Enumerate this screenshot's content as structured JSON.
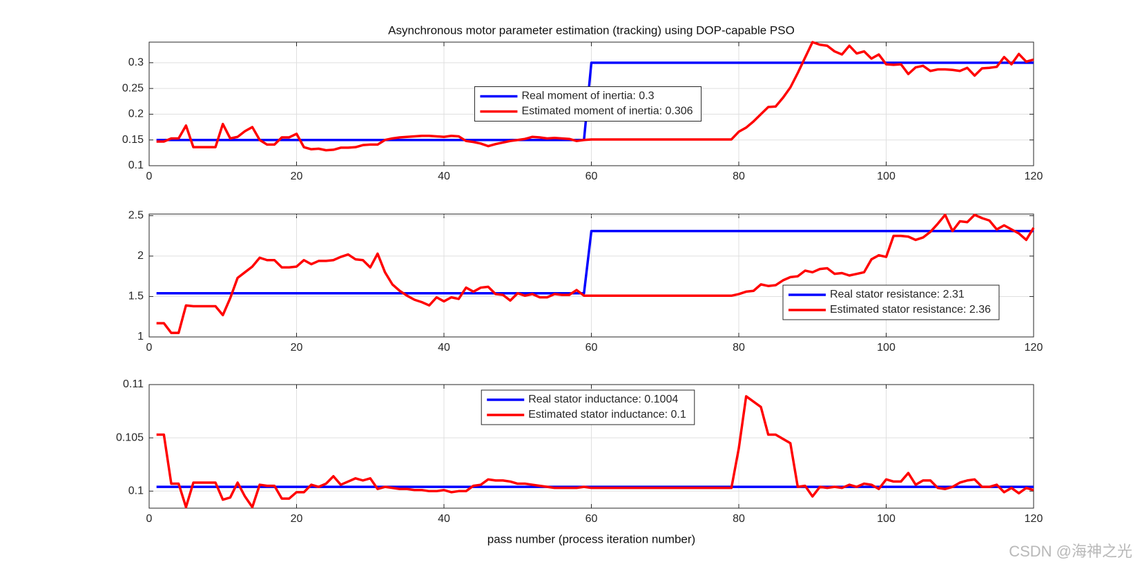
{
  "chart_data": [
    {
      "type": "line",
      "title": "Asynchronous motor parameter estimation (tracking) using DOP-capable PSO",
      "xlim": [
        0,
        120
      ],
      "xticks": [
        0,
        20,
        40,
        60,
        80,
        100,
        120
      ],
      "ylim": [
        0.1,
        0.34
      ],
      "yticks": [
        0.1,
        0.15,
        0.2,
        0.25,
        0.3
      ],
      "grid": true,
      "legend": "center",
      "x": [
        1,
        2,
        3,
        4,
        5,
        6,
        7,
        8,
        9,
        10,
        11,
        12,
        13,
        14,
        15,
        16,
        17,
        18,
        19,
        20,
        21,
        22,
        23,
        24,
        25,
        26,
        27,
        28,
        29,
        30,
        31,
        32,
        33,
        34,
        35,
        36,
        37,
        38,
        39,
        40,
        41,
        42,
        43,
        44,
        45,
        46,
        47,
        48,
        49,
        50,
        51,
        52,
        53,
        54,
        55,
        56,
        57,
        58,
        59,
        60,
        61,
        62,
        63,
        64,
        65,
        66,
        67,
        68,
        69,
        70,
        71,
        72,
        73,
        74,
        75,
        76,
        77,
        78,
        79,
        80,
        81,
        82,
        83,
        84,
        85,
        86,
        87,
        88,
        89,
        90,
        91,
        92,
        93,
        94,
        95,
        96,
        97,
        98,
        99,
        100,
        101,
        102,
        103,
        104,
        105,
        106,
        107,
        108,
        109,
        110,
        111,
        112,
        113,
        114,
        115,
        116,
        117,
        118,
        119,
        120
      ],
      "series": [
        {
          "name": "Real moment of inertia: 0.3",
          "color": "#0000ff",
          "x": [
            1,
            59,
            60,
            120
          ],
          "values": [
            0.15,
            0.15,
            0.3,
            0.3
          ]
        },
        {
          "name": "Estimated moment of inertia: 0.306",
          "color": "#ff0000",
          "values": [
            0.147,
            0.147,
            0.153,
            0.153,
            0.178,
            0.136,
            0.136,
            0.136,
            0.136,
            0.181,
            0.153,
            0.156,
            0.167,
            0.175,
            0.15,
            0.141,
            0.141,
            0.155,
            0.155,
            0.162,
            0.136,
            0.132,
            0.133,
            0.13,
            0.131,
            0.135,
            0.135,
            0.136,
            0.14,
            0.141,
            0.141,
            0.15,
            0.153,
            0.155,
            0.156,
            0.157,
            0.158,
            0.158,
            0.157,
            0.156,
            0.158,
            0.157,
            0.148,
            0.146,
            0.143,
            0.138,
            0.142,
            0.145,
            0.148,
            0.15,
            0.152,
            0.156,
            0.155,
            0.153,
            0.154,
            0.153,
            0.152,
            0.148,
            0.15,
            0.151,
            0.151,
            0.151,
            0.151,
            0.151,
            0.151,
            0.151,
            0.151,
            0.151,
            0.151,
            0.151,
            0.151,
            0.151,
            0.151,
            0.151,
            0.151,
            0.151,
            0.151,
            0.151,
            0.151,
            0.166,
            0.174,
            0.186,
            0.2,
            0.214,
            0.215,
            0.232,
            0.252,
            0.28,
            0.31,
            0.34,
            0.335,
            0.333,
            0.322,
            0.316,
            0.333,
            0.318,
            0.322,
            0.308,
            0.316,
            0.297,
            0.296,
            0.297,
            0.278,
            0.291,
            0.294,
            0.284,
            0.287,
            0.287,
            0.286,
            0.284,
            0.29,
            0.275,
            0.289,
            0.29,
            0.292,
            0.311,
            0.297,
            0.317,
            0.302,
            0.306
          ]
        }
      ]
    },
    {
      "type": "line",
      "xlim": [
        0,
        120
      ],
      "xticks": [
        0,
        20,
        40,
        60,
        80,
        100,
        120
      ],
      "ylim": [
        1,
        2.52
      ],
      "yticks": [
        1,
        1.5,
        2,
        2.5
      ],
      "grid": true,
      "legend": "southeast",
      "x": [
        1,
        2,
        3,
        4,
        5,
        6,
        7,
        8,
        9,
        10,
        11,
        12,
        13,
        14,
        15,
        16,
        17,
        18,
        19,
        20,
        21,
        22,
        23,
        24,
        25,
        26,
        27,
        28,
        29,
        30,
        31,
        32,
        33,
        34,
        35,
        36,
        37,
        38,
        39,
        40,
        41,
        42,
        43,
        44,
        45,
        46,
        47,
        48,
        49,
        50,
        51,
        52,
        53,
        54,
        55,
        56,
        57,
        58,
        59,
        60,
        61,
        62,
        63,
        64,
        65,
        66,
        67,
        68,
        69,
        70,
        71,
        72,
        73,
        74,
        75,
        76,
        77,
        78,
        79,
        80,
        81,
        82,
        83,
        84,
        85,
        86,
        87,
        88,
        89,
        90,
        91,
        92,
        93,
        94,
        95,
        96,
        97,
        98,
        99,
        100,
        101,
        102,
        103,
        104,
        105,
        106,
        107,
        108,
        109,
        110,
        111,
        112,
        113,
        114,
        115,
        116,
        117,
        118,
        119,
        120
      ],
      "series": [
        {
          "name": "Real stator resistance: 2.31",
          "color": "#0000ff",
          "x": [
            1,
            59,
            60,
            120
          ],
          "values": [
            1.54,
            1.54,
            2.31,
            2.31
          ]
        },
        {
          "name": "Estimated stator resistance: 2.36",
          "color": "#ff0000",
          "values": [
            1.17,
            1.17,
            1.05,
            1.05,
            1.39,
            1.38,
            1.38,
            1.38,
            1.38,
            1.27,
            1.48,
            1.73,
            1.8,
            1.87,
            1.98,
            1.95,
            1.95,
            1.86,
            1.86,
            1.87,
            1.95,
            1.9,
            1.94,
            1.94,
            1.95,
            1.99,
            2.02,
            1.96,
            1.95,
            1.86,
            2.03,
            1.8,
            1.65,
            1.57,
            1.51,
            1.46,
            1.43,
            1.39,
            1.49,
            1.44,
            1.49,
            1.47,
            1.61,
            1.56,
            1.61,
            1.62,
            1.53,
            1.52,
            1.45,
            1.54,
            1.51,
            1.53,
            1.49,
            1.49,
            1.53,
            1.52,
            1.52,
            1.58,
            1.51,
            1.51,
            1.51,
            1.51,
            1.51,
            1.51,
            1.51,
            1.51,
            1.51,
            1.51,
            1.51,
            1.51,
            1.51,
            1.51,
            1.51,
            1.51,
            1.51,
            1.51,
            1.51,
            1.51,
            1.51,
            1.53,
            1.56,
            1.57,
            1.65,
            1.63,
            1.64,
            1.7,
            1.74,
            1.75,
            1.82,
            1.8,
            1.84,
            1.85,
            1.78,
            1.79,
            1.76,
            1.78,
            1.8,
            1.96,
            2.01,
            1.99,
            2.25,
            2.25,
            2.24,
            2.2,
            2.23,
            2.3,
            2.4,
            2.51,
            2.31,
            2.43,
            2.42,
            2.51,
            2.47,
            2.44,
            2.33,
            2.38,
            2.33,
            2.28,
            2.2,
            2.35
          ]
        }
      ]
    },
    {
      "type": "line",
      "x_label": "pass number (process iteration number)",
      "xlim": [
        0,
        120
      ],
      "xticks": [
        0,
        20,
        40,
        60,
        80,
        100,
        120
      ],
      "ylim": [
        0.0984,
        0.11
      ],
      "yticks": [
        0.1,
        0.105,
        0.11
      ],
      "grid": true,
      "legend": "north",
      "x": [
        1,
        2,
        3,
        4,
        5,
        6,
        7,
        8,
        9,
        10,
        11,
        12,
        13,
        14,
        15,
        16,
        17,
        18,
        19,
        20,
        21,
        22,
        23,
        24,
        25,
        26,
        27,
        28,
        29,
        30,
        31,
        32,
        33,
        34,
        35,
        36,
        37,
        38,
        39,
        40,
        41,
        42,
        43,
        44,
        45,
        46,
        47,
        48,
        49,
        50,
        51,
        52,
        53,
        54,
        55,
        56,
        57,
        58,
        59,
        60,
        61,
        62,
        63,
        64,
        65,
        66,
        67,
        68,
        69,
        70,
        71,
        72,
        73,
        74,
        75,
        76,
        77,
        78,
        79,
        80,
        81,
        82,
        83,
        84,
        85,
        86,
        87,
        88,
        89,
        90,
        91,
        92,
        93,
        94,
        95,
        96,
        97,
        98,
        99,
        100,
        101,
        102,
        103,
        104,
        105,
        106,
        107,
        108,
        109,
        110,
        111,
        112,
        113,
        114,
        115,
        116,
        117,
        118,
        119,
        120
      ],
      "series": [
        {
          "name": "Real stator inductance: 0.1004",
          "color": "#0000ff",
          "x": [
            1,
            120
          ],
          "values": [
            0.1004,
            0.1004
          ]
        },
        {
          "name": "Estimated stator inductance: 0.1",
          "color": "#ff0000",
          "values": [
            0.1053,
            0.1053,
            0.1007,
            0.1007,
            0.0985,
            0.1008,
            0.1008,
            0.1008,
            0.1008,
            0.0992,
            0.0994,
            0.1008,
            0.0995,
            0.0985,
            0.1006,
            0.1005,
            0.1005,
            0.0993,
            0.0993,
            0.0999,
            0.0999,
            0.1006,
            0.1004,
            0.1007,
            0.1014,
            0.1006,
            0.1009,
            0.1012,
            0.101,
            0.1012,
            0.1002,
            0.1004,
            0.1003,
            0.1002,
            0.1002,
            0.1001,
            0.1001,
            0.1,
            0.1,
            0.1001,
            0.0999,
            0.1,
            0.1,
            0.1005,
            0.1006,
            0.1011,
            0.101,
            0.101,
            0.1009,
            0.1007,
            0.1007,
            0.1006,
            0.1005,
            0.1004,
            0.1003,
            0.1003,
            0.1003,
            0.1003,
            0.1004,
            0.1003,
            0.1003,
            0.1003,
            0.1003,
            0.1003,
            0.1003,
            0.1003,
            0.1003,
            0.1003,
            0.1003,
            0.1003,
            0.1003,
            0.1003,
            0.1003,
            0.1003,
            0.1003,
            0.1003,
            0.1003,
            0.1003,
            0.1003,
            0.104,
            0.1089,
            0.1084,
            0.1079,
            0.1053,
            0.1053,
            0.1049,
            0.1045,
            0.1004,
            0.1005,
            0.0995,
            0.1004,
            0.1003,
            0.1004,
            0.1003,
            0.1006,
            0.1004,
            0.1007,
            0.1006,
            0.1002,
            0.1011,
            0.1009,
            0.1009,
            0.1017,
            0.1006,
            0.101,
            0.101,
            0.1003,
            0.1002,
            0.1004,
            0.1008,
            0.101,
            0.1011,
            0.1004,
            0.1004,
            0.1006,
            0.0999,
            0.1003,
            0.0998,
            0.1003,
            0.1001
          ]
        }
      ]
    }
  ],
  "watermark": "CSDN @海神之光"
}
